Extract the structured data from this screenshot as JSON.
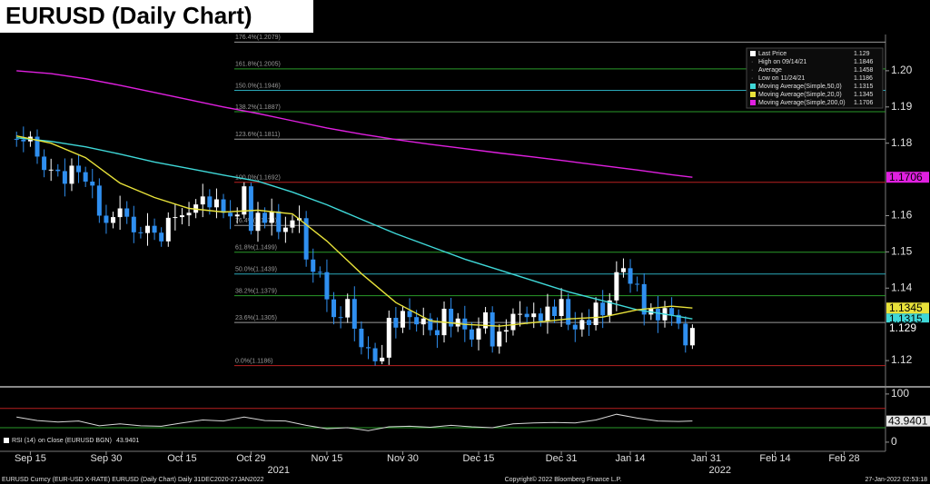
{
  "chart_data": [
    {
      "type": "candlestick",
      "title": "EURUSD (Daily Chart)",
      "x": [
        0,
        1,
        2,
        3,
        4,
        5,
        6,
        7,
        8,
        9,
        10,
        11,
        12,
        13,
        14,
        15,
        16,
        17,
        18,
        19,
        20,
        21,
        22,
        23,
        24,
        25,
        26,
        27,
        28,
        29,
        30,
        31,
        32,
        33,
        34,
        35,
        36,
        37,
        38,
        39,
        40,
        41,
        42,
        43,
        44,
        45,
        46,
        47,
        48,
        49,
        50,
        51,
        52,
        53,
        54,
        55,
        56,
        57,
        58,
        59,
        60,
        61,
        62,
        63,
        64,
        65,
        66,
        67,
        68,
        69,
        70,
        71,
        72,
        73,
        74,
        75,
        76,
        77,
        78,
        79,
        80,
        81,
        82,
        83,
        84,
        85,
        86,
        87,
        88,
        89,
        90,
        91,
        92,
        93,
        94,
        95,
        96,
        97,
        98
      ],
      "open": [
        1.1812,
        1.181,
        1.1805,
        1.1818,
        1.1763,
        1.1726,
        1.1727,
        1.1723,
        1.1688,
        1.1738,
        1.172,
        1.1694,
        1.1683,
        1.16,
        1.158,
        1.1596,
        1.162,
        1.1597,
        1.1554,
        1.1552,
        1.1572,
        1.1553,
        1.1529,
        1.1594,
        1.1596,
        1.1601,
        1.1608,
        1.1631,
        1.1653,
        1.1623,
        1.1645,
        1.1608,
        1.1598,
        1.1603,
        1.1681,
        1.1558,
        1.1608,
        1.158,
        1.1612,
        1.1555,
        1.1567,
        1.1587,
        1.1593,
        1.1479,
        1.1445,
        1.1444,
        1.1369,
        1.132,
        1.1319,
        1.137,
        1.1288,
        1.1237,
        1.1234,
        1.1198,
        1.1208,
        1.1318,
        1.1291,
        1.1337,
        1.132,
        1.13,
        1.1316,
        1.1284,
        1.127,
        1.1343,
        1.1294,
        1.1316,
        1.1286,
        1.1258,
        1.1289,
        1.1333,
        1.1239,
        1.128,
        1.1284,
        1.1329,
        1.1329,
        1.132,
        1.133,
        1.1309,
        1.1349,
        1.1323,
        1.137,
        1.1299,
        1.1286,
        1.1312,
        1.1298,
        1.136,
        1.1325,
        1.1366,
        1.1444,
        1.1455,
        1.1412,
        1.1411,
        1.1327,
        1.1343,
        1.1311,
        1.1345,
        1.1326,
        1.1302,
        1.1242
      ],
      "high": [
        1.1832,
        1.1846,
        1.1833,
        1.1838,
        1.1783,
        1.1757,
        1.1742,
        1.1758,
        1.1758,
        1.1768,
        1.1735,
        1.1729,
        1.1703,
        1.163,
        1.1611,
        1.1655,
        1.164,
        1.1627,
        1.1569,
        1.1607,
        1.1592,
        1.1568,
        1.1609,
        1.1631,
        1.1621,
        1.1638,
        1.1646,
        1.1688,
        1.1673,
        1.1675,
        1.166,
        1.1643,
        1.1623,
        1.1692,
        1.1691,
        1.1638,
        1.1623,
        1.1647,
        1.1632,
        1.1597,
        1.1602,
        1.1628,
        1.1613,
        1.1509,
        1.146,
        1.1479,
        1.1389,
        1.135,
        1.1385,
        1.1405,
        1.1308,
        1.1267,
        1.1249,
        1.1243,
        1.1338,
        1.1348,
        1.1352,
        1.1372,
        1.134,
        1.1346,
        1.1331,
        1.1319,
        1.1363,
        1.1373,
        1.1331,
        1.1351,
        1.1306,
        1.1319,
        1.1348,
        1.135,
        1.13,
        1.1314,
        1.1344,
        1.1364,
        1.1349,
        1.136,
        1.1345,
        1.1384,
        1.1369,
        1.14,
        1.1385,
        1.1334,
        1.1332,
        1.1342,
        1.1375,
        1.1395,
        1.1386,
        1.1474,
        1.1482,
        1.148,
        1.1432,
        1.1441,
        1.1358,
        1.1378,
        1.1365,
        1.1375,
        1.1341,
        1.1322,
        1.13
      ],
      "low": [
        1.179,
        1.1775,
        1.179,
        1.1743,
        1.1706,
        1.1696,
        1.1708,
        1.1653,
        1.1668,
        1.169,
        1.1679,
        1.1648,
        1.158,
        1.155,
        1.1565,
        1.1561,
        1.1577,
        1.1524,
        1.1537,
        1.1517,
        1.1533,
        1.1514,
        1.1514,
        1.1559,
        1.1576,
        1.1571,
        1.1593,
        1.1596,
        1.1603,
        1.1593,
        1.1593,
        1.1563,
        1.1578,
        1.1592,
        1.1548,
        1.1528,
        1.1565,
        1.1545,
        1.1535,
        1.1525,
        1.1552,
        1.1552,
        1.1459,
        1.1415,
        1.1429,
        1.1334,
        1.13,
        1.1289,
        1.1304,
        1.1253,
        1.1217,
        1.1204,
        1.1186,
        1.119,
        1.1188,
        1.1261,
        1.1276,
        1.1285,
        1.128,
        1.127,
        1.1269,
        1.1235,
        1.125,
        1.1264,
        1.1279,
        1.1251,
        1.1238,
        1.1228,
        1.1274,
        1.1222,
        1.1219,
        1.125,
        1.1269,
        1.1294,
        1.13,
        1.129,
        1.1294,
        1.1274,
        1.1303,
        1.1293,
        1.1284,
        1.1251,
        1.1266,
        1.1268,
        1.1283,
        1.129,
        1.1305,
        1.1336,
        1.1429,
        1.1387,
        1.1391,
        1.1297,
        1.1312,
        1.1276,
        1.1291,
        1.1296,
        1.1287,
        1.1222,
        1.1232
      ],
      "close": [
        1.181,
        1.1805,
        1.1818,
        1.1763,
        1.1726,
        1.1727,
        1.1723,
        1.1688,
        1.1738,
        1.172,
        1.1694,
        1.1683,
        1.16,
        1.158,
        1.1596,
        1.162,
        1.1597,
        1.1554,
        1.1552,
        1.1572,
        1.1553,
        1.1529,
        1.1594,
        1.1596,
        1.1601,
        1.1608,
        1.1631,
        1.1653,
        1.1623,
        1.1645,
        1.1608,
        1.1598,
        1.1603,
        1.1681,
        1.1558,
        1.1608,
        1.158,
        1.1612,
        1.1555,
        1.1567,
        1.1587,
        1.1593,
        1.1479,
        1.1445,
        1.1444,
        1.1369,
        1.132,
        1.1319,
        1.137,
        1.1288,
        1.1237,
        1.1234,
        1.1198,
        1.1208,
        1.1318,
        1.1291,
        1.1337,
        1.132,
        1.13,
        1.1316,
        1.1284,
        1.127,
        1.1343,
        1.1294,
        1.1316,
        1.1286,
        1.1258,
        1.1289,
        1.1333,
        1.1239,
        1.128,
        1.1284,
        1.1329,
        1.1329,
        1.132,
        1.133,
        1.1309,
        1.1349,
        1.1323,
        1.137,
        1.1299,
        1.1286,
        1.1312,
        1.1298,
        1.136,
        1.1325,
        1.1366,
        1.1444,
        1.1455,
        1.1412,
        1.1411,
        1.1327,
        1.1343,
        1.1311,
        1.1345,
        1.1326,
        1.1302,
        1.1242,
        1.129
      ],
      "up_color": "#ffffff",
      "down_color": "#2f8ff0",
      "series": [
        {
          "name": "Moving Average(Simple,50,0)",
          "color": "#3fd8d8",
          "x": [
            0,
            5,
            10,
            15,
            20,
            25,
            30,
            35,
            40,
            45,
            50,
            55,
            60,
            65,
            70,
            75,
            80,
            85,
            90,
            95,
            98
          ],
          "values": [
            1.1815,
            1.1805,
            1.179,
            1.177,
            1.1748,
            1.173,
            1.1712,
            1.1695,
            1.1665,
            1.163,
            1.159,
            1.155,
            1.1515,
            1.148,
            1.145,
            1.142,
            1.139,
            1.1365,
            1.134,
            1.1325,
            1.1315
          ]
        },
        {
          "name": "Moving Average(Simple,20,0)",
          "color": "#e8e23a",
          "x": [
            0,
            5,
            10,
            15,
            20,
            25,
            30,
            35,
            40,
            45,
            50,
            55,
            60,
            65,
            70,
            75,
            80,
            85,
            90,
            95,
            98
          ],
          "values": [
            1.182,
            1.18,
            1.176,
            1.169,
            1.165,
            1.162,
            1.161,
            1.1615,
            1.1605,
            1.153,
            1.144,
            1.136,
            1.131,
            1.13,
            1.1295,
            1.1305,
            1.1315,
            1.132,
            1.134,
            1.135,
            1.1345
          ]
        },
        {
          "name": "Moving Average(Simple,200,0)",
          "color": "#e020e0",
          "x": [
            0,
            5,
            10,
            15,
            20,
            25,
            30,
            35,
            40,
            45,
            50,
            55,
            60,
            65,
            70,
            75,
            80,
            85,
            90,
            95,
            98
          ],
          "values": [
            1.2,
            1.1992,
            1.1978,
            1.196,
            1.194,
            1.192,
            1.19,
            1.1882,
            1.1862,
            1.1842,
            1.1825,
            1.181,
            1.1797,
            1.1785,
            1.1773,
            1.1762,
            1.175,
            1.1738,
            1.1726,
            1.1713,
            1.1706
          ]
        }
      ],
      "legend": {
        "position": "top-right",
        "last_label": "Last Price",
        "high_label": "High on 09/14/21",
        "average_label": "Average",
        "average": 1.1458,
        "low_label": "Low on 11/24/21"
      },
      "fib_levels": [
        {
          "label": "176.4%(1.2079)",
          "value": 1.2079,
          "color": "#9a9a9a"
        },
        {
          "label": "161.8%(1.2005)",
          "value": 1.2005,
          "color": "#2a9a2a"
        },
        {
          "label": "150.0%(1.1946)",
          "value": 1.1946,
          "color": "#2aa8b8"
        },
        {
          "label": "138.2%(1.1887)",
          "value": 1.1887,
          "color": "#2a9a2a"
        },
        {
          "label": "123.6%(1.1811)",
          "value": 1.1811,
          "color": "#9a9a9a"
        },
        {
          "label": "100.0%(1.1692)",
          "value": 1.1692,
          "color": "#b82020"
        },
        {
          "label": "76.4%(1.1573)",
          "value": 1.1573,
          "color": "#9a9a9a"
        },
        {
          "label": "61.8%(1.1499)",
          "value": 1.1499,
          "color": "#2a9a2a"
        },
        {
          "label": "50.0%(1.1439)",
          "value": 1.1439,
          "color": "#2aa8b8"
        },
        {
          "label": "38.2%(1.1379)",
          "value": 1.1379,
          "color": "#2a9a2a"
        },
        {
          "label": "23.6%(1.1305)",
          "value": 1.1305,
          "color": "#9a9a9a"
        },
        {
          "label": "0.0%(1.1186)",
          "value": 1.1186,
          "color": "#b82020"
        }
      ],
      "xlim": [
        -2.4,
        126
      ],
      "xticks": [
        {
          "value": 2,
          "label": "Sep 15"
        },
        {
          "value": 13,
          "label": "Sep 30"
        },
        {
          "value": 24,
          "label": "Oct 15"
        },
        {
          "value": 34,
          "label": "Oct 29"
        },
        {
          "value": 45,
          "label": "Nov 15"
        },
        {
          "value": 56,
          "label": "Nov 30"
        },
        {
          "value": 67,
          "label": "Dec 15"
        },
        {
          "value": 79,
          "label": "Dec 31"
        },
        {
          "value": 89,
          "label": "Jan 14"
        },
        {
          "value": 100,
          "label": "Jan 31"
        },
        {
          "value": 110,
          "label": "Feb 14"
        },
        {
          "value": 120,
          "label": "Feb 28"
        }
      ],
      "year_labels": [
        {
          "value": 38,
          "label": "2021"
        },
        {
          "value": 102,
          "label": "2022"
        }
      ],
      "ylim": [
        1.113,
        1.21
      ],
      "yticks": [
        {
          "value": 1.2,
          "label": "1.20"
        },
        1.19,
        1.18,
        1.16,
        1.15,
        1.14,
        1.12
      ]
    },
    {
      "type": "line",
      "series": [
        {
          "name": "RSI (14)",
          "color": "#d8d8d8",
          "x": [
            0,
            3,
            6,
            9,
            12,
            15,
            18,
            21,
            24,
            27,
            30,
            33,
            36,
            39,
            42,
            45,
            48,
            51,
            54,
            57,
            60,
            63,
            66,
            69,
            72,
            75,
            78,
            81,
            84,
            87,
            90,
            93,
            96,
            98
          ],
          "values": [
            52,
            45,
            42,
            44,
            34,
            38,
            34,
            33,
            40,
            46,
            44,
            52,
            45,
            44,
            35,
            28,
            30,
            24,
            32,
            33,
            31,
            35,
            32,
            30,
            38,
            40,
            41,
            40,
            46,
            58,
            50,
            44,
            43,
            43.9401
          ]
        }
      ],
      "source": "on Close (EURUSD BGN)",
      "levels": [
        {
          "value": 70,
          "color": "#b82020"
        },
        {
          "value": 30,
          "color": "#2a9a2a"
        }
      ],
      "ylim": [
        -19,
        113
      ],
      "yticks": [
        0,
        100
      ]
    }
  ],
  "footer": {
    "left": "EURUSD Curncy (EUR-USD X-RATE) EURUSD (Daily Chart)  Daily 31DEC2020-27JAN2022",
    "center": "Copyright© 2022 Bloomberg Finance L.P.",
    "right": "27-Jan-2022 02:53:18"
  }
}
